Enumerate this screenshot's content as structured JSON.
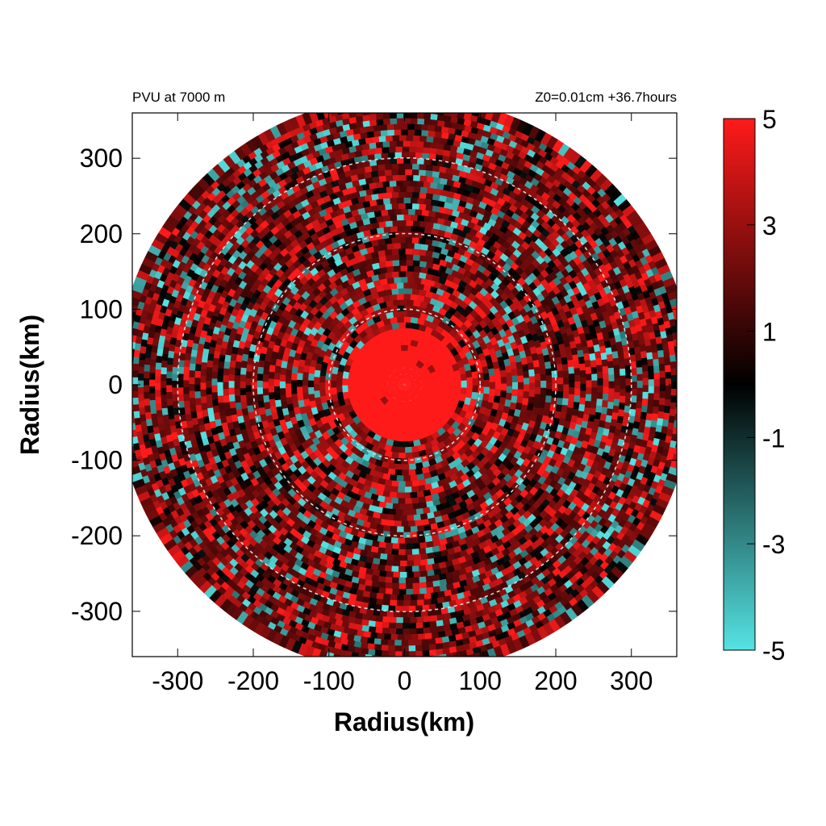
{
  "header": {
    "left_label": "PVU at  7000 m",
    "right_label": "Z0=0.01cm  +36.7hours"
  },
  "chart_data": {
    "type": "heatmap",
    "title": "",
    "xlabel": "Radius(km)",
    "ylabel": "Radius(km)",
    "xlim": [
      -360,
      360
    ],
    "ylim": [
      -360,
      360
    ],
    "x_ticks": [
      -300,
      -200,
      -100,
      0,
      100,
      200,
      300
    ],
    "y_ticks": [
      300,
      200,
      100,
      0,
      -100,
      -200,
      -300
    ],
    "x_tick_labels": [
      "-300",
      "-200",
      "-100",
      "0",
      "100",
      "200",
      "300"
    ],
    "y_tick_labels": [
      "300",
      "200",
      "100",
      "0",
      "-100",
      "-200",
      "-300"
    ],
    "domain_radius_km": 375,
    "reference_circle_radii_km": [
      100,
      200,
      300
    ],
    "colorbar": {
      "min": -5,
      "max": 5,
      "tick_values": [
        5,
        3,
        1,
        -1,
        -3,
        -5
      ],
      "tick_labels": [
        "5",
        "3",
        "1",
        "-1",
        "-3",
        "-5"
      ],
      "colormap": [
        {
          "value": -5,
          "color": "#55e3e3"
        },
        {
          "value": 0,
          "color": "#000000"
        },
        {
          "value": 5,
          "color": "#ff1a1a"
        }
      ]
    },
    "features": {
      "core": {
        "value": 5,
        "radius_km": 75,
        "center_km": [
          0,
          0
        ]
      },
      "inner_band": {
        "mean_value": 2.6,
        "range_km": [
          75,
          150
        ]
      },
      "outer_field": {
        "mean_value": 1.8
      }
    },
    "grid": false
  }
}
